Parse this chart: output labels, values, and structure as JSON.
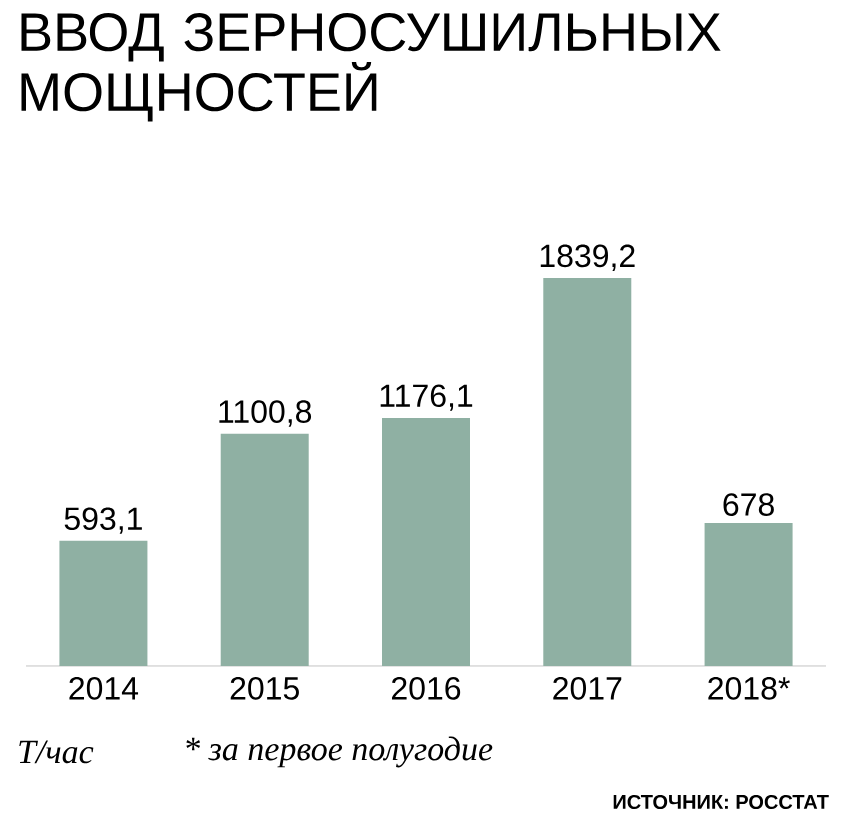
{
  "chart_data": {
    "type": "bar",
    "title": "ВВОД ЗЕРНОСУШИЛЬНЫХ МОЩНОСТЕЙ",
    "categories": [
      "2014",
      "2015",
      "2016",
      "2017",
      "2018*"
    ],
    "values": [
      593.1,
      1100.8,
      1176.1,
      1839.2,
      678
    ],
    "value_labels": [
      "593,1",
      "1100,8",
      "1176,1",
      "1839,2",
      "678"
    ],
    "color": "#8fb0a3",
    "annotations": [
      "Т/час",
      "* за первое полугодие",
      "ИСТОЧНИК: РОССТАТ"
    ]
  }
}
